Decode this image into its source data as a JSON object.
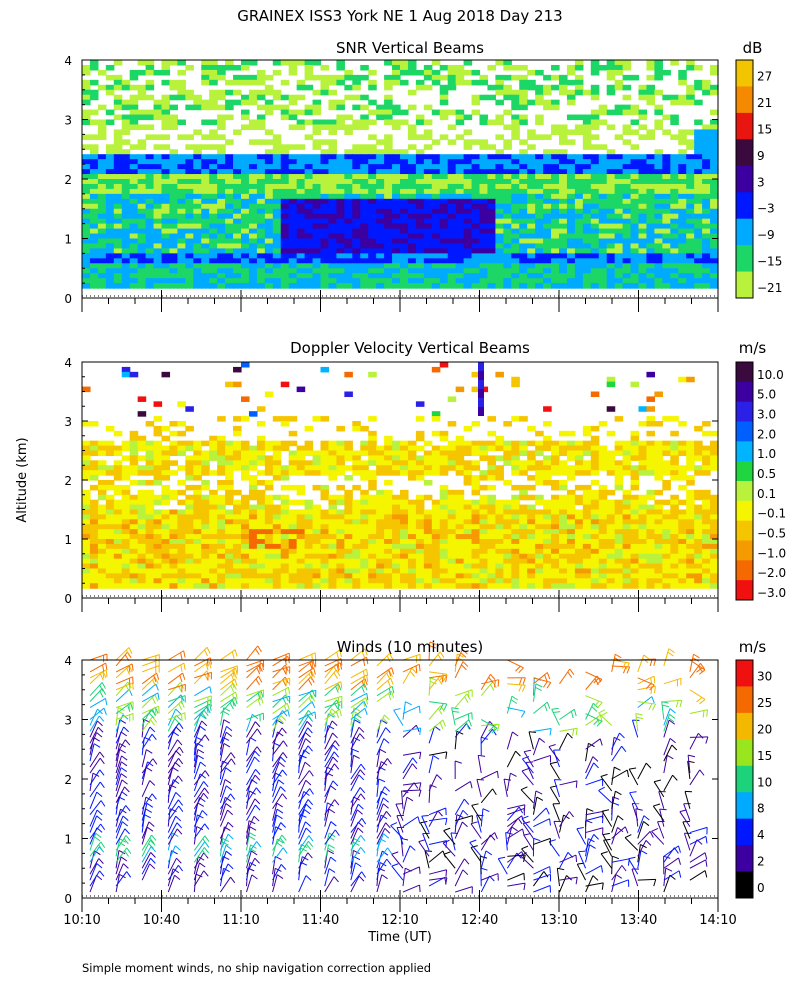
{
  "title": "GRAINEX ISS3 York NE   1 Aug 2018 Day 213",
  "ylabel": "Altitude (km)",
  "footnote": "Simple moment winds, no ship navigation correction applied",
  "chart_data": [
    {
      "type": "heatmap",
      "title": "SNR Vertical Beams",
      "ylim": [
        0,
        4
      ],
      "yticks": [
        "0",
        "1",
        "2",
        "3",
        "4"
      ],
      "colorbar": {
        "unit": "dB",
        "labels": [
          "27",
          "21",
          "15",
          "9",
          "3",
          "−3",
          "−9",
          "−15",
          "−21"
        ],
        "colors": [
          "#f2c500",
          "#f58a00",
          "#e8160e",
          "#3a0a3e",
          "#3d00a0",
          "#0018ff",
          "#00aaff",
          "#1cd666",
          "#b8f23c"
        ]
      }
    },
    {
      "type": "heatmap",
      "title": "Doppler Velocity Vertical Beams",
      "ylim": [
        0,
        4
      ],
      "yticks": [
        "0",
        "1",
        "2",
        "3",
        "4"
      ],
      "colorbar": {
        "unit": "m/s",
        "labels": [
          "10.0",
          "5.0",
          "3.0",
          "2.0",
          "1.0",
          "0.5",
          "0.1",
          "−0.1",
          "−0.5",
          "−1.0",
          "−2.0",
          "−3.0"
        ],
        "colors": [
          "#3a0a3e",
          "#3d00a0",
          "#2a20e6",
          "#0060ff",
          "#00b4ff",
          "#20d640",
          "#b8f23c",
          "#f5f500",
          "#f5c500",
          "#f59a00",
          "#f56a00",
          "#f01010"
        ]
      }
    },
    {
      "type": "scatter",
      "title": "Winds (10 minutes)",
      "ylim": [
        0,
        4
      ],
      "yticks": [
        "0",
        "1",
        "2",
        "3",
        "4"
      ],
      "xlabel": "Time (UT)",
      "xticks": [
        "10:10",
        "10:40",
        "11:10",
        "11:40",
        "12:10",
        "12:40",
        "13:10",
        "13:40",
        "14:10"
      ],
      "colorbar": {
        "unit": "m/s",
        "labels": [
          "30",
          "25",
          "20",
          "15",
          "10",
          "8",
          "4",
          "2",
          "0"
        ],
        "colors": [
          "#f01010",
          "#f56a00",
          "#f5b800",
          "#9ae61e",
          "#1cd27a",
          "#00aaff",
          "#0018ff",
          "#3d00a0",
          "#000000"
        ]
      }
    }
  ]
}
